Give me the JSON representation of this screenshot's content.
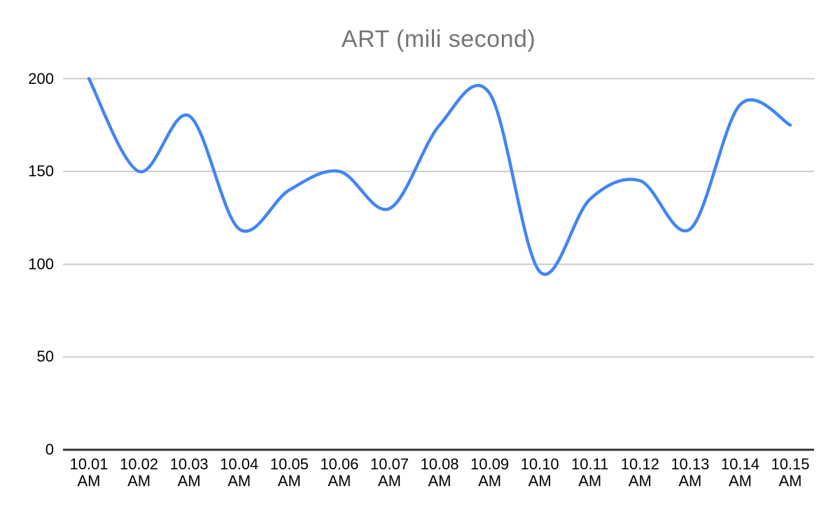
{
  "chart_data": {
    "type": "line",
    "smooth": true,
    "title": "ART (mili second)",
    "categories": [
      "10.01 AM",
      "10.02 AM",
      "10.03 AM",
      "10.04 AM",
      "10.05 AM",
      "10.06 AM",
      "10.07 AM",
      "10.08 AM",
      "10.09 AM",
      "10.10 AM",
      "10.11 AM",
      "10.12 AM",
      "10.13 AM",
      "10.14 AM",
      "10.15 AM"
    ],
    "series": [
      {
        "name": "ART",
        "values": [
          200,
          150,
          180,
          119,
          140,
          150,
          130,
          175,
          192,
          96,
          135,
          145,
          119,
          186,
          175
        ]
      }
    ],
    "xlabel": "",
    "ylabel": "",
    "ylim": [
      0,
      200
    ],
    "y_ticks": [
      0,
      50,
      100,
      150,
      200
    ],
    "grid": "horizontal",
    "legend": "none"
  },
  "colors": {
    "line": "#4285f4",
    "title": "#757575",
    "grid": "#cccccc",
    "axis": "#333333",
    "tick_label": "#000000",
    "background": "#ffffff"
  }
}
